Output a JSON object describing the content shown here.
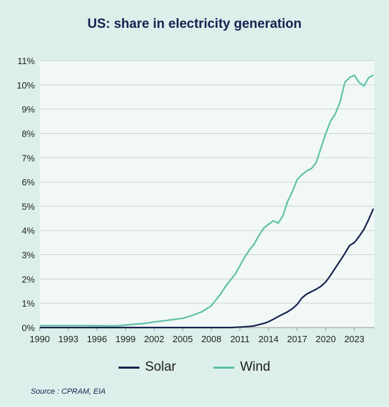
{
  "colors": {
    "solar": "#16224f",
    "wind": "#5fc1a8",
    "plot_bg": "#f1f8f6",
    "grid": "#c9d6d2"
  },
  "title": "US: share in electricity generation",
  "source": "Source : CPRAM, EIA",
  "chart_data": {
    "type": "line",
    "title": "US: share in electricity generation",
    "xlabel": "",
    "ylabel": "",
    "xlim": [
      1990,
      2025.1
    ],
    "ylim": [
      0,
      11
    ],
    "x_ticks": [
      "1990",
      "1993",
      "1996",
      "1999",
      "2002",
      "2005",
      "2008",
      "2011",
      "2014",
      "2017",
      "2020",
      "2023"
    ],
    "y_ticks": [
      "0%",
      "1%",
      "2%",
      "3%",
      "4%",
      "5%",
      "6%",
      "7%",
      "8%",
      "9%",
      "10%",
      "11%"
    ],
    "grid": true,
    "legend_position": "bottom",
    "series": [
      {
        "name": "Solar",
        "color": "#16224f",
        "points": [
          [
            1990,
            0
          ],
          [
            2010,
            0
          ],
          [
            2011,
            0.02
          ],
          [
            2012,
            0.05
          ],
          [
            2012.5,
            0.07
          ],
          [
            2013,
            0.12
          ],
          [
            2013.5,
            0.17
          ],
          [
            2014,
            0.24
          ],
          [
            2014.5,
            0.34
          ],
          [
            2015,
            0.45
          ],
          [
            2015.5,
            0.55
          ],
          [
            2016,
            0.65
          ],
          [
            2016.5,
            0.78
          ],
          [
            2017,
            0.95
          ],
          [
            2017.5,
            1.22
          ],
          [
            2018,
            1.38
          ],
          [
            2018.5,
            1.48
          ],
          [
            2019,
            1.58
          ],
          [
            2019.5,
            1.7
          ],
          [
            2020,
            1.88
          ],
          [
            2020.5,
            2.15
          ],
          [
            2021,
            2.45
          ],
          [
            2021.5,
            2.75
          ],
          [
            2022,
            3.05
          ],
          [
            2022.5,
            3.38
          ],
          [
            2023,
            3.5
          ],
          [
            2023.5,
            3.75
          ],
          [
            2024,
            4.05
          ],
          [
            2024.5,
            4.45
          ],
          [
            2025,
            4.9
          ]
        ]
      },
      {
        "name": "Wind",
        "color": "#5fc1a8",
        "points": [
          [
            1990,
            0.08
          ],
          [
            1995,
            0.08
          ],
          [
            1998,
            0.07
          ],
          [
            1999,
            0.1
          ],
          [
            2000,
            0.14
          ],
          [
            2001,
            0.17
          ],
          [
            2002,
            0.23
          ],
          [
            2003,
            0.28
          ],
          [
            2004,
            0.33
          ],
          [
            2005,
            0.38
          ],
          [
            2006,
            0.5
          ],
          [
            2007,
            0.65
          ],
          [
            2008,
            0.9
          ],
          [
            2008.5,
            1.15
          ],
          [
            2009,
            1.4
          ],
          [
            2009.5,
            1.7
          ],
          [
            2010,
            1.95
          ],
          [
            2010.5,
            2.2
          ],
          [
            2011,
            2.55
          ],
          [
            2011.5,
            2.9
          ],
          [
            2012,
            3.2
          ],
          [
            2012.5,
            3.45
          ],
          [
            2013,
            3.8
          ],
          [
            2013.5,
            4.1
          ],
          [
            2014,
            4.25
          ],
          [
            2014.5,
            4.4
          ],
          [
            2015,
            4.3
          ],
          [
            2015.5,
            4.6
          ],
          [
            2016,
            5.2
          ],
          [
            2016.5,
            5.6
          ],
          [
            2017,
            6.1
          ],
          [
            2017.5,
            6.3
          ],
          [
            2018,
            6.45
          ],
          [
            2018.5,
            6.55
          ],
          [
            2019,
            6.8
          ],
          [
            2019.5,
            7.4
          ],
          [
            2020,
            8.0
          ],
          [
            2020.5,
            8.5
          ],
          [
            2021,
            8.8
          ],
          [
            2021.5,
            9.3
          ],
          [
            2022,
            10.1
          ],
          [
            2022.5,
            10.3
          ],
          [
            2023,
            10.4
          ],
          [
            2023.5,
            10.1
          ],
          [
            2024,
            9.95
          ],
          [
            2024.5,
            10.3
          ],
          [
            2025,
            10.4
          ]
        ]
      }
    ]
  }
}
